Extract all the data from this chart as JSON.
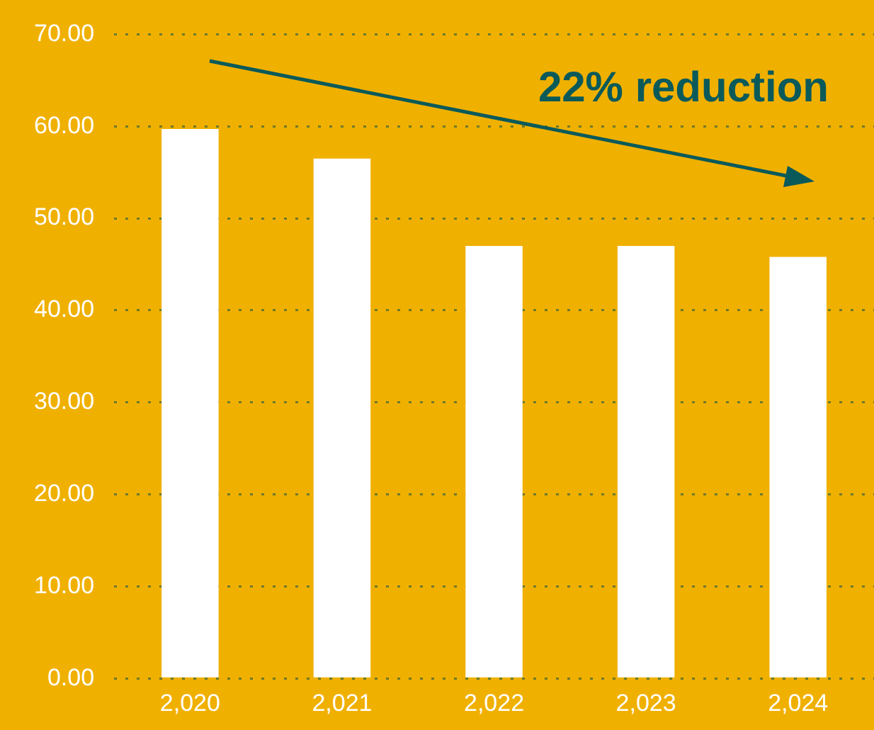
{
  "chart_data": {
    "type": "bar",
    "categories": [
      "2,020",
      "2,021",
      "2,022",
      "2,023",
      "2,024"
    ],
    "values": [
      59.7,
      56.5,
      47.0,
      47.0,
      45.8
    ],
    "color": "#ffffff",
    "ylim": [
      0,
      70
    ],
    "yticks": [
      {
        "value": 0,
        "label": "0.00"
      },
      {
        "value": 10,
        "label": "10.00"
      },
      {
        "value": 20,
        "label": "20.00"
      },
      {
        "value": 30,
        "label": "30.00"
      },
      {
        "value": 40,
        "label": "40.00"
      },
      {
        "value": 50,
        "label": "50.00"
      },
      {
        "value": 60,
        "label": "60.00"
      },
      {
        "value": 70,
        "label": "70.00"
      }
    ],
    "grid": "y",
    "legend": false,
    "annotations": [
      "22% reduction"
    ]
  }
}
